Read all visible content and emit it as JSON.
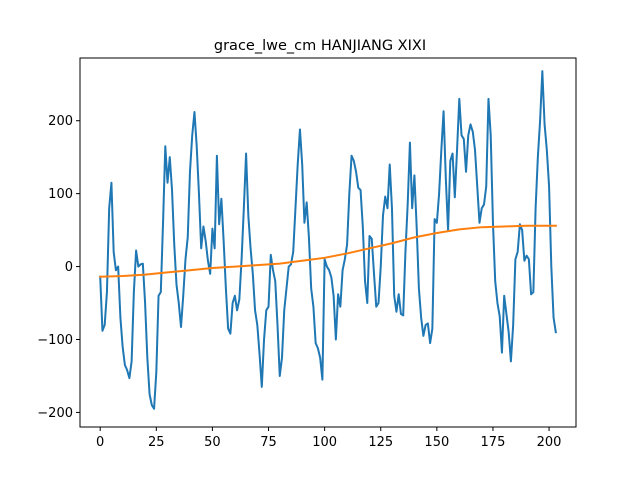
{
  "chart_data": {
    "type": "line",
    "title": "grace_lwe_cm HANJIANG XIXI",
    "xlabel": "",
    "ylabel": "",
    "xlim": [
      -9,
      212
    ],
    "ylim": [
      -220,
      286
    ],
    "x_ticks": [
      0,
      25,
      50,
      75,
      100,
      125,
      150,
      175,
      200
    ],
    "y_ticks": [
      -200,
      -100,
      0,
      100,
      200
    ],
    "x_tick_labels": [
      "0",
      "25",
      "50",
      "75",
      "100",
      "125",
      "150",
      "175",
      "200"
    ],
    "y_tick_labels": [
      "−200",
      "−100",
      "0",
      "100",
      "200"
    ],
    "grid": false,
    "legend": "none",
    "series": [
      {
        "color": "#1f77b4",
        "points": [
          [
            0,
            -14
          ],
          [
            1,
            -88
          ],
          [
            2,
            -80
          ],
          [
            3,
            -35
          ],
          [
            4,
            80
          ],
          [
            5,
            115
          ],
          [
            6,
            20
          ],
          [
            7,
            -5
          ],
          [
            8,
            0
          ],
          [
            9,
            -70
          ],
          [
            10,
            -110
          ],
          [
            11,
            -135
          ],
          [
            12,
            -142
          ],
          [
            13,
            -153
          ],
          [
            14,
            -130
          ],
          [
            15,
            -35
          ],
          [
            16,
            22
          ],
          [
            17,
            0
          ],
          [
            18,
            3
          ],
          [
            19,
            4
          ],
          [
            20,
            -50
          ],
          [
            21,
            -125
          ],
          [
            22,
            -175
          ],
          [
            23,
            -190
          ],
          [
            24,
            -195
          ],
          [
            25,
            -145
          ],
          [
            26,
            -40
          ],
          [
            27,
            -35
          ],
          [
            28,
            60
          ],
          [
            29,
            165
          ],
          [
            30,
            115
          ],
          [
            31,
            150
          ],
          [
            32,
            105
          ],
          [
            33,
            30
          ],
          [
            34,
            -25
          ],
          [
            35,
            -50
          ],
          [
            36,
            -83
          ],
          [
            37,
            -40
          ],
          [
            38,
            10
          ],
          [
            39,
            40
          ],
          [
            40,
            130
          ],
          [
            41,
            180
          ],
          [
            42,
            212
          ],
          [
            43,
            165
          ],
          [
            44,
            100
          ],
          [
            45,
            25
          ],
          [
            46,
            55
          ],
          [
            47,
            35
          ],
          [
            48,
            8
          ],
          [
            49,
            -10
          ],
          [
            50,
            52
          ],
          [
            51,
            25
          ],
          [
            52,
            152
          ],
          [
            53,
            58
          ],
          [
            54,
            93
          ],
          [
            55,
            35
          ],
          [
            56,
            -30
          ],
          [
            57,
            -85
          ],
          [
            58,
            -92
          ],
          [
            59,
            -50
          ],
          [
            60,
            -40
          ],
          [
            61,
            -60
          ],
          [
            62,
            -45
          ],
          [
            63,
            10
          ],
          [
            64,
            80
          ],
          [
            65,
            155
          ],
          [
            66,
            70
          ],
          [
            67,
            25
          ],
          [
            68,
            -10
          ],
          [
            69,
            -60
          ],
          [
            70,
            -80
          ],
          [
            71,
            -120
          ],
          [
            72,
            -165
          ],
          [
            73,
            -100
          ],
          [
            74,
            -60
          ],
          [
            75,
            -55
          ],
          [
            76,
            16
          ],
          [
            77,
            -5
          ],
          [
            78,
            -20
          ],
          [
            79,
            -80
          ],
          [
            80,
            -150
          ],
          [
            81,
            -125
          ],
          [
            82,
            -60
          ],
          [
            83,
            -30
          ],
          [
            84,
            0
          ],
          [
            85,
            3
          ],
          [
            86,
            20
          ],
          [
            87,
            80
          ],
          [
            88,
            140
          ],
          [
            89,
            188
          ],
          [
            90,
            140
          ],
          [
            91,
            60
          ],
          [
            92,
            88
          ],
          [
            93,
            40
          ],
          [
            94,
            -30
          ],
          [
            95,
            -55
          ],
          [
            96,
            -105
          ],
          [
            97,
            -112
          ],
          [
            98,
            -125
          ],
          [
            99,
            -155
          ],
          [
            100,
            10
          ],
          [
            101,
            0
          ],
          [
            102,
            -5
          ],
          [
            103,
            -15
          ],
          [
            104,
            -40
          ],
          [
            105,
            -100
          ],
          [
            106,
            -38
          ],
          [
            107,
            -55
          ],
          [
            108,
            -5
          ],
          [
            109,
            10
          ],
          [
            110,
            30
          ],
          [
            111,
            100
          ],
          [
            112,
            152
          ],
          [
            113,
            145
          ],
          [
            114,
            130
          ],
          [
            115,
            108
          ],
          [
            116,
            105
          ],
          [
            117,
            55
          ],
          [
            118,
            -20
          ],
          [
            119,
            -50
          ],
          [
            120,
            42
          ],
          [
            121,
            38
          ],
          [
            122,
            -10
          ],
          [
            123,
            -55
          ],
          [
            124,
            -50
          ],
          [
            125,
            0
          ],
          [
            126,
            70
          ],
          [
            127,
            96
          ],
          [
            128,
            80
          ],
          [
            129,
            140
          ],
          [
            130,
            80
          ],
          [
            131,
            -40
          ],
          [
            132,
            -62
          ],
          [
            133,
            -38
          ],
          [
            134,
            -65
          ],
          [
            135,
            -67
          ],
          [
            136,
            20
          ],
          [
            137,
            85
          ],
          [
            138,
            170
          ],
          [
            139,
            80
          ],
          [
            140,
            125
          ],
          [
            141,
            55
          ],
          [
            142,
            -30
          ],
          [
            143,
            -70
          ],
          [
            144,
            -95
          ],
          [
            145,
            -80
          ],
          [
            146,
            -78
          ],
          [
            147,
            -105
          ],
          [
            148,
            -85
          ],
          [
            149,
            65
          ],
          [
            150,
            60
          ],
          [
            151,
            100
          ],
          [
            152,
            160
          ],
          [
            153,
            213
          ],
          [
            154,
            120
          ],
          [
            155,
            50
          ],
          [
            156,
            145
          ],
          [
            157,
            155
          ],
          [
            158,
            95
          ],
          [
            159,
            160
          ],
          [
            160,
            230
          ],
          [
            161,
            180
          ],
          [
            162,
            175
          ],
          [
            163,
            130
          ],
          [
            164,
            180
          ],
          [
            165,
            195
          ],
          [
            166,
            185
          ],
          [
            167,
            160
          ],
          [
            168,
            110
          ],
          [
            169,
            60
          ],
          [
            170,
            80
          ],
          [
            171,
            85
          ],
          [
            172,
            110
          ],
          [
            173,
            230
          ],
          [
            174,
            180
          ],
          [
            175,
            60
          ],
          [
            176,
            -20
          ],
          [
            177,
            -50
          ],
          [
            178,
            -68
          ],
          [
            179,
            -118
          ],
          [
            180,
            -40
          ],
          [
            181,
            -65
          ],
          [
            182,
            -90
          ],
          [
            183,
            -130
          ],
          [
            184,
            -80
          ],
          [
            185,
            10
          ],
          [
            186,
            20
          ],
          [
            187,
            58
          ],
          [
            188,
            50
          ],
          [
            189,
            8
          ],
          [
            190,
            15
          ],
          [
            191,
            10
          ],
          [
            192,
            -38
          ],
          [
            193,
            -35
          ],
          [
            194,
            80
          ],
          [
            195,
            150
          ],
          [
            196,
            200
          ],
          [
            197,
            268
          ],
          [
            198,
            195
          ],
          [
            199,
            160
          ],
          [
            200,
            110
          ],
          [
            201,
            0
          ],
          [
            202,
            -70
          ],
          [
            203,
            -90
          ]
        ]
      },
      {
        "color": "#ff7f0e",
        "points": [
          [
            0,
            -14
          ],
          [
            10,
            -13
          ],
          [
            20,
            -11
          ],
          [
            30,
            -8
          ],
          [
            40,
            -5
          ],
          [
            50,
            -2
          ],
          [
            60,
            0
          ],
          [
            70,
            2
          ],
          [
            80,
            4
          ],
          [
            90,
            8
          ],
          [
            100,
            12
          ],
          [
            110,
            18
          ],
          [
            120,
            25
          ],
          [
            130,
            32
          ],
          [
            140,
            40
          ],
          [
            150,
            46
          ],
          [
            160,
            51
          ],
          [
            170,
            54
          ],
          [
            180,
            55
          ],
          [
            190,
            56
          ],
          [
            200,
            56
          ],
          [
            203,
            56
          ]
        ]
      }
    ]
  }
}
